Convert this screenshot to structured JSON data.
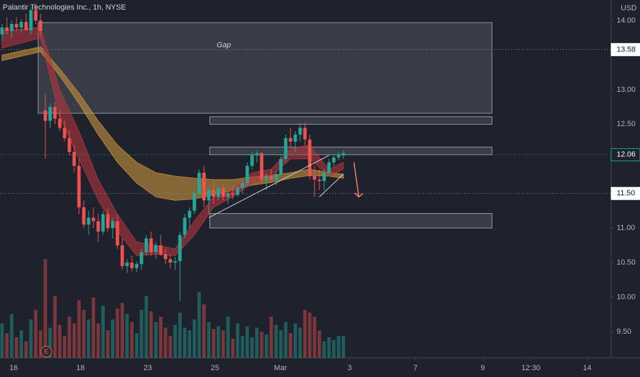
{
  "chart_data": {
    "type": "candlestick",
    "title": "Palantir Technologies Inc., 1h, NYSE",
    "currency": "USD",
    "up_color": "#26a69a",
    "down_color": "#ef5350",
    "xlim": [
      -0.43,
      126.7
    ],
    "xticks": [
      {
        "value": 2.43,
        "label": "16"
      },
      {
        "value": 16.3,
        "label": "18"
      },
      {
        "value": 30.3,
        "label": "23"
      },
      {
        "value": 44.3,
        "label": "25"
      },
      {
        "value": 57.9,
        "label": "Mar"
      },
      {
        "value": 72.3,
        "label": "3"
      },
      {
        "value": 86,
        "label": "7"
      },
      {
        "value": 100,
        "label": "9"
      },
      {
        "value": 110,
        "label": "12:30"
      },
      {
        "value": 121.7,
        "label": "14"
      }
    ],
    "ylim": [
      9.124,
      14.297
    ],
    "yticks": [
      {
        "value": 14,
        "label": "14.00"
      },
      {
        "value": 13,
        "label": "13.00"
      },
      {
        "value": 12.5,
        "label": "12.50"
      },
      {
        "value": 11,
        "label": "11.00"
      },
      {
        "value": 10.5,
        "label": "10.50"
      },
      {
        "value": 10,
        "label": "10.00"
      },
      {
        "value": 9.5,
        "label": "9.50"
      }
    ],
    "price_lines": [
      {
        "value": 13.58,
        "label": "13.58"
      },
      {
        "value": 12.06,
        "label": "12.06"
      },
      {
        "value": 11.5,
        "label": "11.50"
      }
    ],
    "open": [
      13.8,
      13.9,
      13.85,
      13.95,
      13.9,
      13.98,
      13.86,
      14.15,
      14.0,
      12.7,
      12.55,
      12.75,
      12.58,
      12.45,
      12.3,
      12.1,
      11.9,
      11.3,
      11.05,
      11.15,
      11.1,
      10.95,
      11.2,
      11.0,
      11.1,
      10.75,
      10.45,
      10.5,
      10.42,
      10.48,
      10.65,
      10.85,
      10.65,
      10.75,
      10.62,
      10.55,
      10.5,
      10.52,
      10.9,
      11.15,
      11.25,
      11.5,
      11.8,
      11.4,
      11.55,
      11.45,
      11.58,
      11.45,
      11.5,
      11.48,
      11.58,
      11.65,
      11.9,
      12.05,
      12.08,
      11.7,
      11.75,
      11.7,
      11.78,
      12.0,
      12.3,
      12.25,
      12.35,
      12.45,
      12.28,
      11.75,
      11.7,
      11.68,
      11.8,
      11.95,
      12.02,
      12.05
    ],
    "high": [
      13.95,
      14.05,
      14.0,
      14.05,
      14.02,
      14.1,
      14.2,
      14.25,
      14.1,
      12.95,
      12.8,
      12.82,
      12.7,
      12.55,
      12.42,
      12.2,
      12.0,
      11.4,
      11.25,
      11.3,
      11.2,
      11.25,
      11.28,
      11.15,
      11.2,
      10.85,
      10.55,
      10.6,
      10.52,
      10.7,
      10.9,
      10.95,
      10.8,
      10.9,
      10.7,
      10.62,
      10.58,
      10.95,
      11.2,
      11.3,
      11.55,
      11.85,
      11.9,
      11.6,
      11.7,
      11.6,
      11.62,
      11.55,
      11.62,
      11.6,
      11.7,
      11.95,
      12.1,
      12.12,
      12.1,
      11.8,
      11.85,
      11.82,
      12.05,
      12.35,
      12.45,
      12.4,
      12.52,
      12.52,
      12.35,
      11.9,
      11.85,
      11.85,
      12.0,
      12.05,
      12.1,
      12.12
    ],
    "low": [
      13.7,
      13.8,
      13.75,
      13.85,
      13.82,
      13.88,
      13.8,
      13.95,
      13.78,
      12.0,
      12.45,
      12.5,
      12.4,
      12.25,
      12.05,
      11.8,
      11.2,
      11.0,
      10.9,
      11.0,
      10.8,
      10.9,
      10.95,
      10.85,
      10.7,
      10.4,
      10.35,
      10.38,
      10.36,
      10.4,
      10.6,
      10.6,
      10.55,
      10.6,
      10.48,
      10.42,
      10.4,
      9.95,
      10.85,
      11.0,
      11.2,
      11.45,
      11.3,
      11.2,
      11.35,
      11.4,
      11.4,
      11.35,
      11.42,
      11.45,
      11.5,
      11.6,
      11.85,
      11.95,
      11.65,
      11.55,
      11.65,
      11.62,
      11.75,
      11.95,
      12.15,
      12.1,
      12.25,
      12.2,
      11.7,
      11.45,
      11.55,
      11.55,
      11.75,
      11.9,
      11.98,
      12.0
    ],
    "close": [
      13.9,
      13.85,
      13.95,
      13.9,
      13.98,
      13.86,
      14.15,
      14.0,
      13.85,
      12.55,
      12.75,
      12.58,
      12.45,
      12.3,
      12.1,
      11.9,
      11.3,
      11.05,
      11.15,
      11.1,
      10.95,
      11.2,
      11.0,
      11.1,
      10.75,
      10.45,
      10.5,
      10.42,
      10.48,
      10.65,
      10.85,
      10.65,
      10.75,
      10.62,
      10.55,
      10.5,
      10.52,
      10.9,
      11.15,
      11.25,
      11.5,
      11.8,
      11.4,
      11.55,
      11.45,
      11.58,
      11.45,
      11.5,
      11.48,
      11.58,
      11.65,
      11.9,
      12.05,
      12.08,
      11.7,
      11.75,
      11.7,
      11.78,
      12.0,
      12.3,
      12.25,
      12.35,
      12.45,
      12.28,
      11.75,
      11.7,
      11.68,
      11.8,
      11.95,
      12.02,
      12.05,
      12.08
    ],
    "volume": [
      2.5,
      1.8,
      3.2,
      1.5,
      2.0,
      1.2,
      2.8,
      3.5,
      2.0,
      7.2,
      2.2,
      4.5,
      2.4,
      1.6,
      3.0,
      2.5,
      4.2,
      3.5,
      2.8,
      4.4,
      2.5,
      3.8,
      2.0,
      2.8,
      3.6,
      4.0,
      3.2,
      2.6,
      1.8,
      3.5,
      4.5,
      3.4,
      2.6,
      3.0,
      2.2,
      1.6,
      2.4,
      3.3,
      2.2,
      2.0,
      2.8,
      4.8,
      3.9,
      2.6,
      2.1,
      2.3,
      2.0,
      3.0,
      1.4,
      2.5,
      1.6,
      2.3,
      1.5,
      2.2,
      1.9,
      1.7,
      3.0,
      2.4,
      2.0,
      2.6,
      1.8,
      2.5,
      2.2,
      3.5,
      3.3,
      3.0,
      2.0,
      1.2,
      1.5,
      1.3,
      1.6,
      1.6
    ],
    "volume_lim": [
      0,
      10
    ],
    "ribbons": [
      {
        "color": "#c8923c",
        "x": [
          0,
          8,
          12,
          16,
          20,
          24,
          28,
          32,
          36,
          40,
          44,
          48,
          52,
          56,
          60,
          64,
          68,
          71
        ],
        "upper": [
          13.5,
          13.62,
          13.3,
          12.95,
          12.55,
          12.2,
          11.95,
          11.8,
          11.75,
          11.72,
          11.7,
          11.7,
          11.74,
          11.76,
          11.8,
          11.85,
          11.8,
          11.78
        ],
        "lower": [
          13.42,
          13.55,
          13.2,
          12.8,
          12.35,
          11.95,
          11.65,
          11.45,
          11.4,
          11.42,
          11.48,
          11.55,
          11.62,
          11.66,
          11.72,
          11.76,
          11.75,
          11.72
        ]
      },
      {
        "color": "#b3363c",
        "x": [
          0,
          8,
          12,
          16,
          20,
          24,
          28,
          32,
          36,
          40,
          44,
          48,
          52,
          56,
          60,
          64,
          68,
          71
        ],
        "upper": [
          13.85,
          13.9,
          13.0,
          12.4,
          11.7,
          11.2,
          10.8,
          10.75,
          10.7,
          11.1,
          11.45,
          11.55,
          11.8,
          11.85,
          12.15,
          12.2,
          11.85,
          11.95
        ],
        "lower": [
          13.6,
          13.75,
          12.6,
          12.0,
          11.4,
          10.95,
          10.6,
          10.62,
          10.6,
          10.9,
          11.3,
          11.45,
          11.65,
          11.75,
          12.0,
          12.0,
          11.75,
          11.85
        ]
      }
    ],
    "zones": [
      {
        "from": 12.66,
        "to": 13.97,
        "x": [
          7.5,
          101.9
        ],
        "label": "Gap"
      },
      {
        "from": 12.5,
        "to": 12.61,
        "x": [
          43.2,
          101.9
        ]
      },
      {
        "from": 12.06,
        "to": 12.17,
        "x": [
          43.2,
          101.9
        ]
      },
      {
        "from": 11.0,
        "to": 11.21,
        "x": [
          43.2,
          101.9
        ]
      }
    ],
    "trendlines": [
      [
        [
          43,
          11.15
        ],
        [
          68,
          12.05
        ]
      ],
      [
        [
          66,
          11.45
        ],
        [
          71,
          11.78
        ]
      ]
    ],
    "arrow": [
      [
        73.2,
        11.95
      ],
      [
        74.2,
        11.45
      ]
    ],
    "earnings_marker": {
      "x": 9.2,
      "label": "E"
    }
  }
}
